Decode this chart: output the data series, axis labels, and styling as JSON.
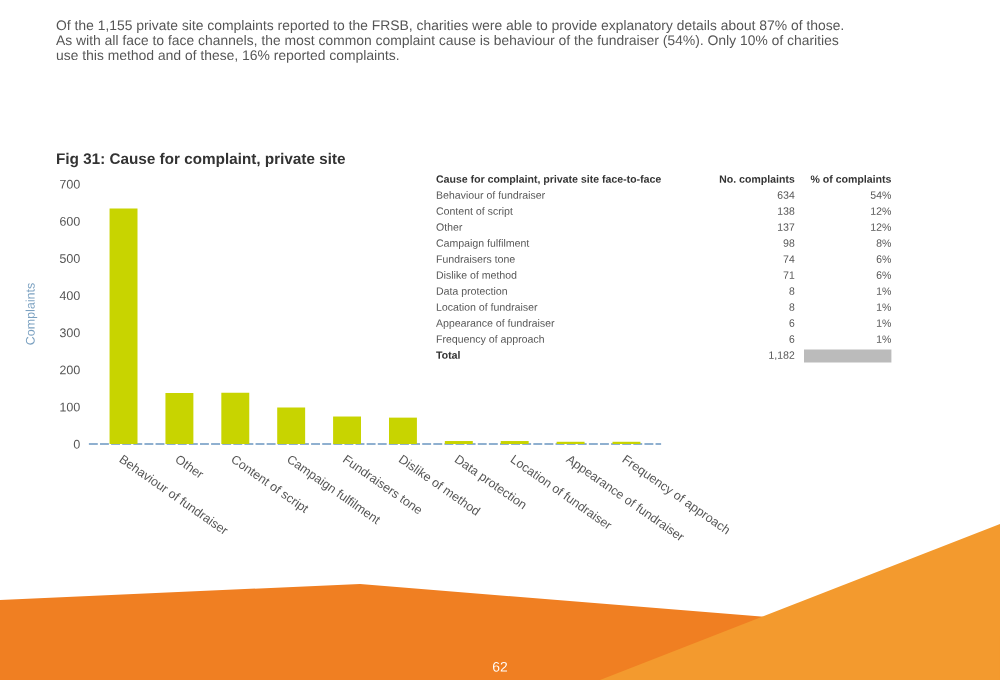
{
  "chart_data": [
    {
      "type": "bar",
      "title": "Fig 31: Cause for complaint, private site",
      "ylabel": "Complaints",
      "categories": [
        "Behaviour of fundraiser",
        "Other",
        "Content of script",
        "Campaign fulfilment",
        "Fundraisers tone",
        "Dislike of method",
        "Data protection",
        "Location of fundraiser",
        "Appearance of fundraiser",
        "Frequency of approach"
      ],
      "values": [
        634,
        137,
        138,
        98,
        74,
        71,
        8,
        8,
        6,
        6
      ],
      "color": "#c8d400",
      "ylim": [
        0,
        700
      ],
      "yticks": [
        0,
        100,
        200,
        300,
        400,
        500,
        600,
        700
      ],
      "grid": false,
      "annotations": [
        "Of the 1,155 private site complaints reported to the FRSB, charities were able to provide explanatory details about 87% of those. As with all face to face channels, the most common complaint cause is behaviour of the fundraiser (54%). Only 10% of charities use this method and of these, 16% reported complaints.",
        "62"
      ]
    },
    {
      "type": "other",
      "title": "Cause for complaint, private site face-to-face",
      "categories": [
        "Behaviour of fundraiser",
        "Content of script",
        "Other",
        "Campaign fulfilment",
        "Fundraisers tone",
        "Dislike of method",
        "Data protection",
        "Location of fundraiser",
        "Appearance of fundraiser",
        "Frequency of approach"
      ],
      "series": [
        {
          "name": "No. complaints",
          "values": [
            634,
            138,
            137,
            98,
            74,
            71,
            8,
            8,
            6,
            6
          ]
        },
        {
          "name": "% of complaints",
          "values": [
            54,
            12,
            12,
            8,
            6,
            6,
            1,
            1,
            1,
            1
          ],
          "value_labels": [
            "54%",
            "12%",
            "12%",
            "8%",
            "6%",
            "6%",
            "1%",
            "1%",
            "1%",
            "1%"
          ]
        }
      ],
      "data_labels": true,
      "annotations": [
        "Total",
        "1,182"
      ]
    }
  ]
}
